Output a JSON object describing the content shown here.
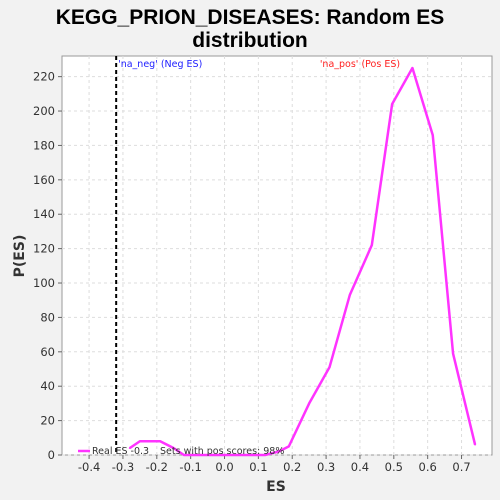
{
  "chart_data": {
    "type": "line",
    "title_lines": [
      "KEGG_PRION_DISEASES: Random ES",
      "distribution"
    ],
    "xlabel": "ES",
    "ylabel": "P(ES)",
    "xlim": [
      -0.48,
      0.79
    ],
    "ylim": [
      0,
      232
    ],
    "xticks": [
      -0.4,
      -0.3,
      -0.2,
      -0.1,
      0.0,
      0.1,
      0.2,
      0.3,
      0.4,
      0.5,
      0.6,
      0.7
    ],
    "xtick_labels": [
      "-0.4",
      "-0.3",
      "-0.2",
      "-0.1",
      "0.0",
      "0.1",
      "0.2",
      "0.3",
      "0.4",
      "0.5",
      "0.6",
      "0.7"
    ],
    "yticks": [
      0,
      20,
      40,
      60,
      80,
      100,
      120,
      140,
      160,
      180,
      200,
      220
    ],
    "ytick_labels": [
      "0",
      "20",
      "40",
      "60",
      "80",
      "100",
      "120",
      "140",
      "160",
      "180",
      "200",
      "220"
    ],
    "grid": true,
    "series": [
      {
        "name": "Real ES -0.3",
        "color": "#ff33ff",
        "x": [
          -0.28,
          -0.25,
          -0.19,
          -0.15,
          -0.12,
          -0.06,
          0.0,
          0.06,
          0.12,
          0.16,
          0.19,
          0.25,
          0.31,
          0.37,
          0.435,
          0.495,
          0.555,
          0.615,
          0.675,
          0.74
        ],
        "y": [
          4,
          8,
          8,
          4,
          0,
          0,
          0,
          0,
          0,
          2,
          5,
          30,
          51,
          93,
          122,
          204,
          225,
          186,
          59,
          6
        ]
      }
    ],
    "real_es_line": {
      "x": -0.32,
      "color": "#000000"
    },
    "annotations": [
      {
        "text": "'na_neg' (Neg ES)",
        "x": -0.19,
        "y": 228,
        "color": "#2020ff"
      },
      {
        "text": "'na_pos' (Pos ES)",
        "x": 0.4,
        "y": 228,
        "color": "#ff2020"
      }
    ],
    "legend": {
      "placement": "bottom-left",
      "entry": "Real ES -0.3",
      "note": "Sets with pos scores: 98%"
    }
  }
}
